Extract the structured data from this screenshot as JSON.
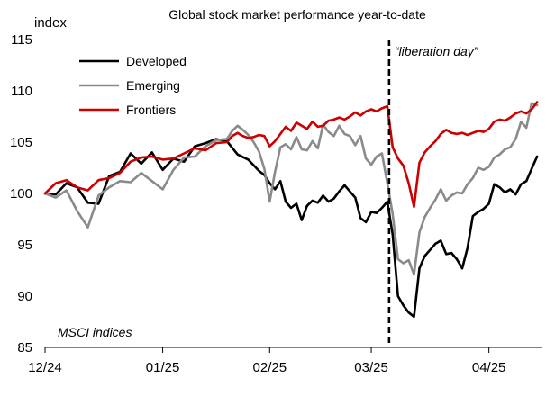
{
  "chart_data": {
    "type": "line",
    "title": "Global stock market performance year-to-date",
    "ylabel": "index",
    "xlabel": "",
    "ylim": [
      85,
      115
    ],
    "yticks": [
      85,
      90,
      95,
      100,
      105,
      110,
      115
    ],
    "x_tick_labels": [
      "12/24",
      "01/25",
      "02/25",
      "03/25",
      "04/25"
    ],
    "x_tick_positions": [
      0,
      22,
      42,
      61,
      83
    ],
    "xlim": [
      0,
      93
    ],
    "grid": false,
    "legend_position": "top-left",
    "annotation_text": "MSCI indices",
    "event": {
      "label": "“liberation day”",
      "x": 64
    },
    "series": [
      {
        "name": "Developed",
        "color": "#000000",
        "points": [
          [
            0,
            100
          ],
          [
            2,
            99.9
          ],
          [
            4,
            101
          ],
          [
            6,
            100.6
          ],
          [
            8,
            99.1
          ],
          [
            10,
            99
          ],
          [
            12,
            101.7
          ],
          [
            14,
            102.1
          ],
          [
            16,
            103.9
          ],
          [
            18,
            102.9
          ],
          [
            20,
            104
          ],
          [
            22,
            102.3
          ],
          [
            24,
            103.4
          ],
          [
            26,
            103.1
          ],
          [
            28,
            104.6
          ],
          [
            30,
            104.9
          ],
          [
            32,
            105.3
          ],
          [
            34,
            105.1
          ],
          [
            36,
            103.8
          ],
          [
            38,
            103.3
          ],
          [
            40,
            102.2
          ],
          [
            41,
            101.8
          ],
          [
            42,
            101
          ],
          [
            43,
            100.4
          ],
          [
            44,
            101.2
          ],
          [
            45,
            99.2
          ],
          [
            46,
            98.6
          ],
          [
            47,
            99
          ],
          [
            48,
            97.4
          ],
          [
            49,
            98.8
          ],
          [
            50,
            99.3
          ],
          [
            51,
            99.1
          ],
          [
            52,
            99.8
          ],
          [
            53,
            99.2
          ],
          [
            54,
            99.5
          ],
          [
            55,
            100.2
          ],
          [
            56,
            100.8
          ],
          [
            57,
            100.2
          ],
          [
            58,
            99.6
          ],
          [
            59,
            97.6
          ],
          [
            60,
            97.2
          ],
          [
            61,
            98.2
          ],
          [
            62,
            98.1
          ],
          [
            63,
            98.6
          ],
          [
            64,
            99.2
          ],
          [
            65,
            96
          ],
          [
            66,
            90
          ],
          [
            67,
            89.1
          ],
          [
            68,
            88.4
          ],
          [
            69,
            88
          ],
          [
            70,
            92.7
          ],
          [
            71,
            93.9
          ],
          [
            72,
            94.5
          ],
          [
            73,
            95.1
          ],
          [
            74,
            95.4
          ],
          [
            75,
            94.1
          ],
          [
            76,
            94.2
          ],
          [
            77,
            93.6
          ],
          [
            78,
            92.7
          ],
          [
            79,
            94.7
          ],
          [
            80,
            97.8
          ],
          [
            81,
            98.2
          ],
          [
            82,
            98.5
          ],
          [
            83,
            99
          ],
          [
            84,
            100.9
          ],
          [
            85,
            100.6
          ],
          [
            86,
            100.1
          ],
          [
            87,
            100.4
          ],
          [
            88,
            99.9
          ],
          [
            89,
            100.9
          ],
          [
            90,
            101.2
          ],
          [
            91,
            102.4
          ],
          [
            92,
            103.6
          ]
        ]
      },
      {
        "name": "Emerging",
        "color": "#8a8a8a",
        "points": [
          [
            0,
            100
          ],
          [
            2,
            99.6
          ],
          [
            4,
            100.3
          ],
          [
            6,
            98.3
          ],
          [
            8,
            96.7
          ],
          [
            10,
            99.8
          ],
          [
            12,
            100.6
          ],
          [
            14,
            101.2
          ],
          [
            16,
            101.1
          ],
          [
            18,
            102
          ],
          [
            20,
            101.2
          ],
          [
            22,
            100.4
          ],
          [
            24,
            102.3
          ],
          [
            26,
            103.5
          ],
          [
            28,
            103.6
          ],
          [
            30,
            104.6
          ],
          [
            32,
            105.2
          ],
          [
            34,
            105.3
          ],
          [
            35,
            106.1
          ],
          [
            36,
            106.6
          ],
          [
            37,
            106.2
          ],
          [
            38,
            105.7
          ],
          [
            39,
            105
          ],
          [
            40,
            104.1
          ],
          [
            41,
            102.4
          ],
          [
            42,
            99.2
          ],
          [
            43,
            102.1
          ],
          [
            44,
            104.5
          ],
          [
            45,
            104.8
          ],
          [
            46,
            104.3
          ],
          [
            47,
            105.5
          ],
          [
            48,
            104.3
          ],
          [
            49,
            104.2
          ],
          [
            50,
            105.1
          ],
          [
            51,
            104.4
          ],
          [
            52,
            106.7
          ],
          [
            53,
            106
          ],
          [
            54,
            105.6
          ],
          [
            55,
            106.6
          ],
          [
            56,
            105.8
          ],
          [
            57,
            105.6
          ],
          [
            58,
            104.7
          ],
          [
            59,
            105.6
          ],
          [
            60,
            103.4
          ],
          [
            61,
            102.8
          ],
          [
            62,
            103.6
          ],
          [
            63,
            103.9
          ],
          [
            64,
            101
          ],
          [
            65,
            98
          ],
          [
            66,
            93.6
          ],
          [
            67,
            93.2
          ],
          [
            68,
            93.5
          ],
          [
            69,
            92.1
          ],
          [
            70,
            96.2
          ],
          [
            71,
            97.7
          ],
          [
            72,
            98.6
          ],
          [
            73,
            99.4
          ],
          [
            74,
            100.4
          ],
          [
            75,
            99.3
          ],
          [
            76,
            99.8
          ],
          [
            77,
            100.1
          ],
          [
            78,
            100
          ],
          [
            79,
            100.9
          ],
          [
            80,
            101.5
          ],
          [
            81,
            102.5
          ],
          [
            82,
            102.3
          ],
          [
            83,
            102.6
          ],
          [
            84,
            103.5
          ],
          [
            85,
            103.8
          ],
          [
            86,
            104.3
          ],
          [
            87,
            104.5
          ],
          [
            88,
            105.3
          ],
          [
            89,
            107
          ],
          [
            90,
            106.4
          ],
          [
            91,
            108.8
          ],
          [
            92,
            108.6
          ]
        ]
      },
      {
        "name": "Frontiers",
        "color": "#cc0000",
        "points": [
          [
            0,
            100
          ],
          [
            2,
            101
          ],
          [
            4,
            101.3
          ],
          [
            6,
            100.6
          ],
          [
            8,
            100.3
          ],
          [
            10,
            101.3
          ],
          [
            12,
            101.5
          ],
          [
            14,
            102
          ],
          [
            16,
            103.1
          ],
          [
            18,
            103.5
          ],
          [
            20,
            103.6
          ],
          [
            22,
            103.3
          ],
          [
            24,
            103.4
          ],
          [
            26,
            103.9
          ],
          [
            28,
            104.4
          ],
          [
            30,
            104.2
          ],
          [
            32,
            104.9
          ],
          [
            34,
            105
          ],
          [
            35,
            105.6
          ],
          [
            36,
            105.9
          ],
          [
            37,
            105.6
          ],
          [
            38,
            105.4
          ],
          [
            39,
            105.5
          ],
          [
            40,
            105.7
          ],
          [
            41,
            105.6
          ],
          [
            42,
            104.6
          ],
          [
            43,
            105.1
          ],
          [
            44,
            105.8
          ],
          [
            45,
            106.5
          ],
          [
            46,
            106.1
          ],
          [
            47,
            106.9
          ],
          [
            48,
            106.6
          ],
          [
            49,
            106.3
          ],
          [
            50,
            107
          ],
          [
            51,
            106.5
          ],
          [
            52,
            106.6
          ],
          [
            53,
            107.1
          ],
          [
            54,
            107.2
          ],
          [
            55,
            107.4
          ],
          [
            56,
            107.2
          ],
          [
            57,
            107.5
          ],
          [
            58,
            107.9
          ],
          [
            59,
            107.6
          ],
          [
            60,
            108
          ],
          [
            61,
            108.2
          ],
          [
            62,
            108
          ],
          [
            63,
            108.3
          ],
          [
            64,
            108.5
          ],
          [
            65,
            104.5
          ],
          [
            66,
            103.4
          ],
          [
            67,
            102.7
          ],
          [
            68,
            101
          ],
          [
            69,
            98.7
          ],
          [
            70,
            103
          ],
          [
            71,
            104
          ],
          [
            72,
            104.6
          ],
          [
            73,
            105.1
          ],
          [
            74,
            105.8
          ],
          [
            75,
            106.2
          ],
          [
            76,
            105.9
          ],
          [
            77,
            105.8
          ],
          [
            78,
            105.9
          ],
          [
            79,
            105.7
          ],
          [
            80,
            105.9
          ],
          [
            81,
            106.1
          ],
          [
            82,
            106
          ],
          [
            83,
            106.3
          ],
          [
            84,
            107
          ],
          [
            85,
            107.2
          ],
          [
            86,
            107.1
          ],
          [
            87,
            107.4
          ],
          [
            88,
            107.8
          ],
          [
            89,
            108
          ],
          [
            90,
            107.8
          ],
          [
            91,
            108.2
          ],
          [
            92,
            108.9
          ]
        ]
      }
    ]
  },
  "colors": {
    "background": "#ffffff",
    "axis": "#000000",
    "developed": "#000000",
    "emerging": "#8a8a8a",
    "frontiers": "#cc0000",
    "event_line": "#000000"
  }
}
